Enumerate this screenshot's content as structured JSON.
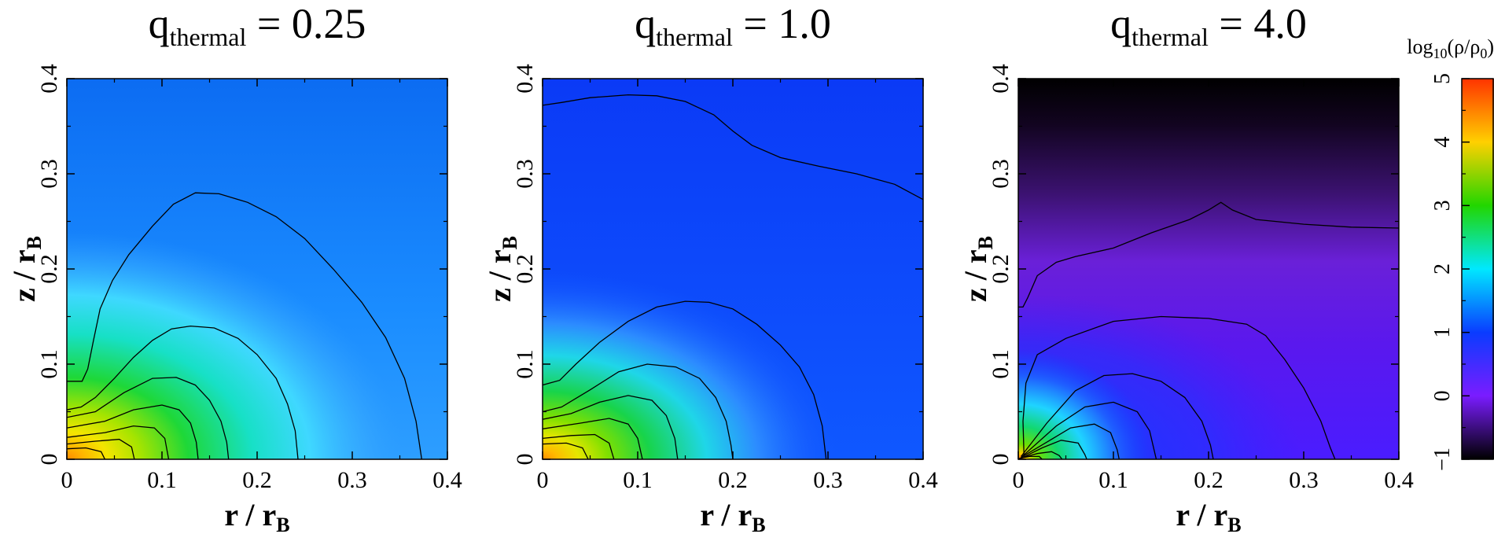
{
  "chart_data": [
    {
      "type": "heatmap",
      "title": {
        "base": "q",
        "sub": "thermal",
        "rest": " = 0.25"
      },
      "xlabel": {
        "base": "r / r",
        "sub": "B"
      },
      "ylabel": {
        "base": "z / r",
        "sub": "B"
      },
      "xlim": [
        0,
        0.4
      ],
      "ylim": [
        0,
        0.4
      ],
      "xticks": [
        "0",
        "0.1",
        "0.2",
        "0.3",
        "0.4"
      ],
      "yticks": [
        "0",
        "0.1",
        "0.2",
        "0.3",
        "0.4"
      ],
      "contours": [
        {
          "points": [
            [
              0,
              0.082
            ],
            [
              0.016,
              0.082
            ],
            [
              0.022,
              0.095
            ],
            [
              0.028,
              0.125
            ],
            [
              0.035,
              0.158
            ],
            [
              0.048,
              0.188
            ],
            [
              0.065,
              0.215
            ],
            [
              0.09,
              0.245
            ],
            [
              0.112,
              0.268
            ],
            [
              0.135,
              0.28
            ],
            [
              0.16,
              0.279
            ],
            [
              0.19,
              0.27
            ],
            [
              0.22,
              0.255
            ],
            [
              0.25,
              0.232
            ],
            [
              0.28,
              0.2
            ],
            [
              0.31,
              0.165
            ],
            [
              0.335,
              0.128
            ],
            [
              0.355,
              0.085
            ],
            [
              0.367,
              0.04
            ],
            [
              0.373,
              0
            ]
          ]
        },
        {
          "points": [
            [
              0,
              0.052
            ],
            [
              0.015,
              0.055
            ],
            [
              0.03,
              0.065
            ],
            [
              0.05,
              0.085
            ],
            [
              0.07,
              0.107
            ],
            [
              0.09,
              0.125
            ],
            [
              0.11,
              0.137
            ],
            [
              0.13,
              0.14
            ],
            [
              0.155,
              0.138
            ],
            [
              0.18,
              0.127
            ],
            [
              0.2,
              0.11
            ],
            [
              0.22,
              0.085
            ],
            [
              0.232,
              0.058
            ],
            [
              0.24,
              0.03
            ],
            [
              0.243,
              0
            ]
          ]
        },
        {
          "points": [
            [
              0,
              0.044
            ],
            [
              0.03,
              0.05
            ],
            [
              0.06,
              0.07
            ],
            [
              0.09,
              0.085
            ],
            [
              0.115,
              0.086
            ],
            [
              0.135,
              0.078
            ],
            [
              0.15,
              0.062
            ],
            [
              0.162,
              0.04
            ],
            [
              0.168,
              0.018
            ],
            [
              0.17,
              0
            ]
          ]
        },
        {
          "points": [
            [
              0,
              0.033
            ],
            [
              0.04,
              0.04
            ],
            [
              0.07,
              0.052
            ],
            [
              0.1,
              0.057
            ],
            [
              0.118,
              0.052
            ],
            [
              0.13,
              0.038
            ],
            [
              0.136,
              0.018
            ],
            [
              0.138,
              0
            ]
          ]
        },
        {
          "points": [
            [
              0,
              0.023
            ],
            [
              0.04,
              0.028
            ],
            [
              0.07,
              0.035
            ],
            [
              0.092,
              0.033
            ],
            [
              0.103,
              0.022
            ],
            [
              0.107,
              0
            ]
          ]
        },
        {
          "points": [
            [
              0,
              0.016
            ],
            [
              0.03,
              0.019
            ],
            [
              0.055,
              0.021
            ],
            [
              0.068,
              0.013
            ],
            [
              0.071,
              0
            ]
          ]
        },
        {
          "points": [
            [
              0,
              0.011
            ],
            [
              0.02,
              0.012
            ],
            [
              0.036,
              0.008
            ],
            [
              0.04,
              0
            ]
          ]
        }
      ]
    },
    {
      "type": "heatmap",
      "title": {
        "base": "q",
        "sub": "thermal",
        "rest": " = 1.0"
      },
      "xlabel": {
        "base": "r / r",
        "sub": "B"
      },
      "ylabel": {
        "base": "z / r",
        "sub": "B"
      },
      "xlim": [
        0,
        0.4
      ],
      "ylim": [
        0,
        0.4
      ],
      "xticks": [
        "0",
        "0.1",
        "0.2",
        "0.3",
        "0.4"
      ],
      "yticks": [
        "0",
        "0.1",
        "0.2",
        "0.3",
        "0.4"
      ],
      "contours": [
        {
          "points": [
            [
              0,
              0.372
            ],
            [
              0.02,
              0.375
            ],
            [
              0.05,
              0.38
            ],
            [
              0.09,
              0.383
            ],
            [
              0.12,
              0.382
            ],
            [
              0.15,
              0.376
            ],
            [
              0.18,
              0.362
            ],
            [
              0.2,
              0.345
            ],
            [
              0.22,
              0.33
            ],
            [
              0.25,
              0.317
            ],
            [
              0.29,
              0.308
            ],
            [
              0.33,
              0.3
            ],
            [
              0.37,
              0.289
            ],
            [
              0.4,
              0.273
            ]
          ]
        },
        {
          "points": [
            [
              0,
              0.078
            ],
            [
              0.018,
              0.083
            ],
            [
              0.035,
              0.1
            ],
            [
              0.06,
              0.123
            ],
            [
              0.09,
              0.145
            ],
            [
              0.12,
              0.16
            ],
            [
              0.15,
              0.166
            ],
            [
              0.175,
              0.165
            ],
            [
              0.2,
              0.158
            ],
            [
              0.225,
              0.142
            ],
            [
              0.25,
              0.12
            ],
            [
              0.27,
              0.097
            ],
            [
              0.285,
              0.068
            ],
            [
              0.294,
              0.035
            ],
            [
              0.298,
              0
            ]
          ]
        },
        {
          "points": [
            [
              0,
              0.05
            ],
            [
              0.02,
              0.055
            ],
            [
              0.05,
              0.073
            ],
            [
              0.08,
              0.092
            ],
            [
              0.11,
              0.1
            ],
            [
              0.14,
              0.097
            ],
            [
              0.165,
              0.085
            ],
            [
              0.182,
              0.065
            ],
            [
              0.193,
              0.04
            ],
            [
              0.198,
              0.015
            ],
            [
              0.2,
              0
            ]
          ]
        },
        {
          "points": [
            [
              0,
              0.042
            ],
            [
              0.03,
              0.048
            ],
            [
              0.06,
              0.06
            ],
            [
              0.09,
              0.067
            ],
            [
              0.115,
              0.062
            ],
            [
              0.13,
              0.046
            ],
            [
              0.139,
              0.022
            ],
            [
              0.142,
              0
            ]
          ]
        },
        {
          "points": [
            [
              0,
              0.032
            ],
            [
              0.04,
              0.038
            ],
            [
              0.07,
              0.043
            ],
            [
              0.09,
              0.037
            ],
            [
              0.1,
              0.022
            ],
            [
              0.105,
              0
            ]
          ]
        },
        {
          "points": [
            [
              0,
              0.022
            ],
            [
              0.03,
              0.025
            ],
            [
              0.055,
              0.026
            ],
            [
              0.07,
              0.017
            ],
            [
              0.075,
              0
            ]
          ]
        },
        {
          "points": [
            [
              0,
              0.016
            ],
            [
              0.025,
              0.017
            ],
            [
              0.042,
              0.012
            ],
            [
              0.048,
              0
            ]
          ]
        }
      ]
    },
    {
      "type": "heatmap",
      "title": {
        "base": "q",
        "sub": "thermal",
        "rest": " = 4.0"
      },
      "xlabel": {
        "base": "r / r",
        "sub": "B"
      },
      "ylabel": {
        "base": "z / r",
        "sub": "B"
      },
      "xlim": [
        0,
        0.4
      ],
      "ylim": [
        0,
        0.4
      ],
      "xticks": [
        "0",
        "0.1",
        "0.2",
        "0.3",
        "0.4"
      ],
      "yticks": [
        "0",
        "0.1",
        "0.2",
        "0.3",
        "0.4"
      ],
      "contours": [
        {
          "points": [
            [
              0,
              0.16
            ],
            [
              0.005,
              0.16
            ],
            [
              0.01,
              0.17
            ],
            [
              0.02,
              0.193
            ],
            [
              0.04,
              0.207
            ],
            [
              0.06,
              0.213
            ],
            [
              0.1,
              0.222
            ],
            [
              0.14,
              0.238
            ],
            [
              0.18,
              0.252
            ],
            [
              0.2,
              0.262
            ],
            [
              0.213,
              0.27
            ],
            [
              0.225,
              0.262
            ],
            [
              0.25,
              0.252
            ],
            [
              0.3,
              0.247
            ],
            [
              0.35,
              0.244
            ],
            [
              0.4,
              0.243
            ]
          ]
        },
        {
          "points": [
            [
              0.006,
              0.003
            ],
            [
              0.005,
              0.04
            ],
            [
              0.008,
              0.08
            ],
            [
              0.02,
              0.11
            ],
            [
              0.05,
              0.127
            ],
            [
              0.1,
              0.145
            ],
            [
              0.15,
              0.15
            ],
            [
              0.2,
              0.148
            ],
            [
              0.24,
              0.142
            ],
            [
              0.26,
              0.13
            ],
            [
              0.28,
              0.105
            ],
            [
              0.3,
              0.075
            ],
            [
              0.318,
              0.04
            ],
            [
              0.328,
              0.012
            ],
            [
              0.333,
              0
            ]
          ]
        },
        {
          "points": [
            [
              0.003,
              0.003
            ],
            [
              0.03,
              0.038
            ],
            [
              0.06,
              0.072
            ],
            [
              0.09,
              0.088
            ],
            [
              0.12,
              0.09
            ],
            [
              0.15,
              0.082
            ],
            [
              0.175,
              0.065
            ],
            [
              0.193,
              0.04
            ],
            [
              0.202,
              0.015
            ],
            [
              0.205,
              0
            ]
          ]
        },
        {
          "points": [
            [
              0.003,
              0.002
            ],
            [
              0.04,
              0.035
            ],
            [
              0.07,
              0.055
            ],
            [
              0.1,
              0.06
            ],
            [
              0.125,
              0.05
            ],
            [
              0.138,
              0.03
            ],
            [
              0.145,
              0
            ]
          ]
        },
        {
          "points": [
            [
              0.003,
              0.002
            ],
            [
              0.03,
              0.018
            ],
            [
              0.055,
              0.033
            ],
            [
              0.08,
              0.037
            ],
            [
              0.097,
              0.028
            ],
            [
              0.104,
              0.01
            ],
            [
              0.106,
              0
            ]
          ]
        },
        {
          "points": [
            [
              0.003,
              0.001
            ],
            [
              0.025,
              0.012
            ],
            [
              0.045,
              0.02
            ],
            [
              0.063,
              0.017
            ],
            [
              0.07,
              0.005
            ],
            [
              0.072,
              0
            ]
          ]
        },
        {
          "points": [
            [
              0.002,
              0.001
            ],
            [
              0.02,
              0.006
            ],
            [
              0.035,
              0.008
            ],
            [
              0.043,
              0.004
            ],
            [
              0.046,
              0
            ]
          ]
        },
        {
          "points": [
            [
              0.001,
              0.001
            ],
            [
              0.012,
              0.003
            ],
            [
              0.022,
              0.003
            ],
            [
              0.025,
              0
            ]
          ]
        }
      ]
    }
  ],
  "colorbar": {
    "label": {
      "base": "log",
      "sub": "10",
      "rest": "(ρ/ρ",
      "sub2": "0",
      "end": ")"
    },
    "range": [
      -1,
      5
    ],
    "ticks": [
      "−1",
      "0",
      "1",
      "2",
      "3",
      "4",
      "5"
    ],
    "colors": [
      "#000000",
      "#7a1cff",
      "#0a3cff",
      "#00e8ff",
      "#22d600",
      "#ffd000",
      "#ff3300"
    ]
  }
}
